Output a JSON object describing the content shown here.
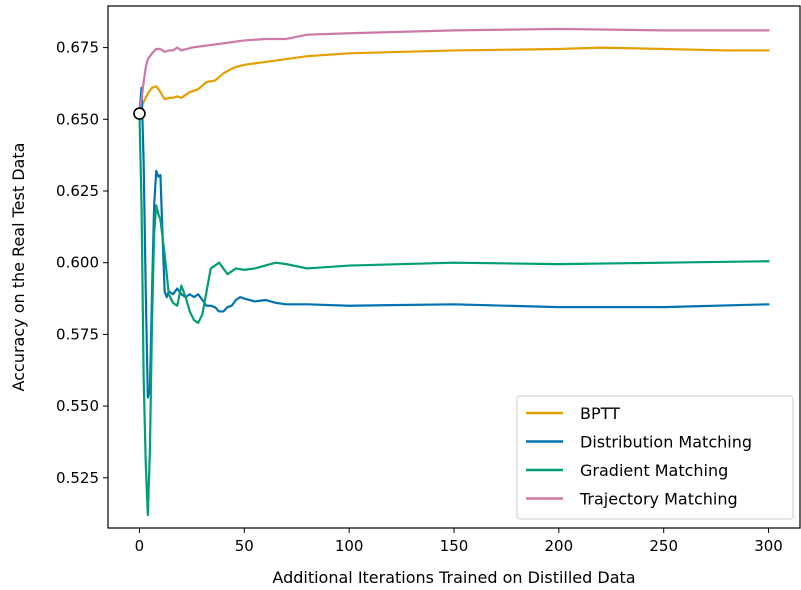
{
  "chart_data": {
    "type": "line",
    "title": "",
    "xlabel": "Additional Iterations Trained on Distilled Data",
    "ylabel": "Accuracy on the Real Test Data",
    "xlim": [
      -15,
      315
    ],
    "ylim": [
      0.5075,
      0.6895
    ],
    "xticks": [
      0,
      50,
      100,
      150,
      200,
      250,
      300
    ],
    "xtick_labels": [
      "0",
      "50",
      "100",
      "150",
      "200",
      "250",
      "300"
    ],
    "yticks": [
      0.525,
      0.55,
      0.575,
      0.6,
      0.625,
      0.65,
      0.675
    ],
    "ytick_labels": [
      "0.525",
      "0.550",
      "0.575",
      "0.600",
      "0.625",
      "0.650",
      "0.675"
    ],
    "grid": false,
    "legend_position": "lower-right",
    "start_marker": {
      "x": 0,
      "y": 0.652
    },
    "series": [
      {
        "name": "BPTT",
        "color": "#E69F00",
        "x": [
          0,
          2,
          4,
          6,
          8,
          10,
          12,
          14,
          16,
          18,
          20,
          24,
          28,
          32,
          36,
          40,
          45,
          50,
          60,
          70,
          80,
          100,
          150,
          200,
          220,
          250,
          280,
          300
        ],
        "y": [
          0.653,
          0.656,
          0.659,
          0.661,
          0.6615,
          0.6595,
          0.657,
          0.6575,
          0.6575,
          0.658,
          0.6575,
          0.6595,
          0.6605,
          0.663,
          0.6635,
          0.666,
          0.668,
          0.669,
          0.67,
          0.671,
          0.672,
          0.673,
          0.674,
          0.6745,
          0.675,
          0.6745,
          0.674,
          0.674
        ]
      },
      {
        "name": "Distribution Matching",
        "color": "#0072B2",
        "x": [
          0,
          1,
          2,
          3,
          4,
          5,
          6,
          7,
          8,
          9,
          10,
          11,
          12,
          13,
          14,
          16,
          18,
          20,
          22,
          24,
          26,
          28,
          30,
          32,
          34,
          36,
          38,
          40,
          42,
          44,
          46,
          48,
          50,
          55,
          60,
          65,
          70,
          80,
          100,
          150,
          200,
          250,
          300
        ],
        "y": [
          0.652,
          0.661,
          0.635,
          0.59,
          0.553,
          0.556,
          0.59,
          0.62,
          0.632,
          0.63,
          0.6305,
          0.61,
          0.59,
          0.588,
          0.59,
          0.589,
          0.591,
          0.589,
          0.588,
          0.589,
          0.588,
          0.589,
          0.587,
          0.585,
          0.585,
          0.5845,
          0.583,
          0.583,
          0.5845,
          0.585,
          0.587,
          0.588,
          0.5875,
          0.5865,
          0.587,
          0.586,
          0.5855,
          0.5855,
          0.585,
          0.5855,
          0.5845,
          0.5845,
          0.5855
        ]
      },
      {
        "name": "Gradient Matching",
        "color": "#009E73",
        "x": [
          0,
          1,
          2,
          3,
          4,
          5,
          6,
          7,
          8,
          9,
          10,
          12,
          14,
          16,
          18,
          20,
          22,
          24,
          26,
          28,
          30,
          32,
          34,
          36,
          38,
          40,
          42,
          44,
          46,
          50,
          55,
          60,
          65,
          70,
          80,
          100,
          150,
          200,
          250,
          300
        ],
        "y": [
          0.652,
          0.62,
          0.56,
          0.53,
          0.512,
          0.535,
          0.58,
          0.61,
          0.62,
          0.617,
          0.615,
          0.603,
          0.589,
          0.586,
          0.585,
          0.592,
          0.588,
          0.583,
          0.58,
          0.579,
          0.582,
          0.59,
          0.598,
          0.599,
          0.6,
          0.598,
          0.596,
          0.597,
          0.598,
          0.5975,
          0.598,
          0.599,
          0.6,
          0.5995,
          0.598,
          0.599,
          0.6,
          0.5995,
          0.6,
          0.6005
        ]
      },
      {
        "name": "Trajectory Matching",
        "color": "#CC79A7",
        "x": [
          0,
          1,
          2,
          3,
          4,
          6,
          8,
          10,
          12,
          14,
          16,
          18,
          20,
          25,
          30,
          40,
          50,
          60,
          70,
          80,
          100,
          150,
          200,
          250,
          300
        ],
        "y": [
          0.6525,
          0.657,
          0.663,
          0.668,
          0.671,
          0.673,
          0.6745,
          0.6745,
          0.6735,
          0.674,
          0.674,
          0.675,
          0.674,
          0.675,
          0.6755,
          0.6765,
          0.6775,
          0.678,
          0.678,
          0.6795,
          0.68,
          0.681,
          0.6815,
          0.681,
          0.681
        ]
      }
    ]
  }
}
